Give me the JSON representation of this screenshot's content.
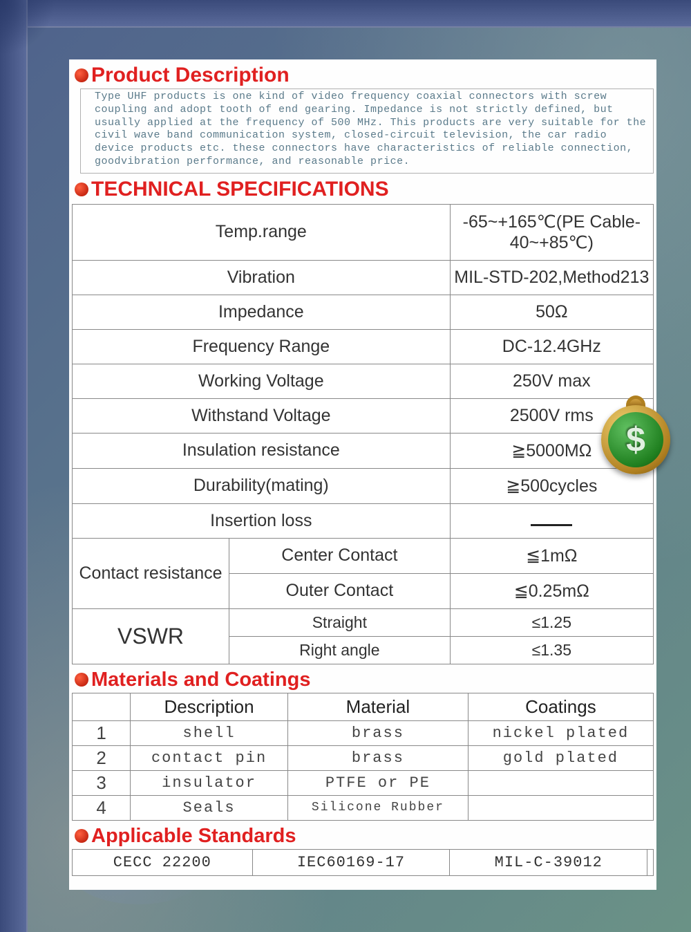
{
  "colors": {
    "heading": "#e02020",
    "border": "#888888",
    "text": "#333333",
    "desc_text": "#5a7a8a",
    "bg_page": "#fefefe"
  },
  "sections": {
    "desc_title": "Product Description",
    "desc_body": "Type UHF products is one kind of video frequency coaxial connectors with screw coupling and adopt tooth of end gearing. Impedance is not strictly defined, but usually applied at the frequency of 500 MHz. This products are very suitable for the civil wave band communication system, closed-circuit television, the car radio device products etc. these connectors have characteristics of reliable connection, goodvibration performance, and reasonable price.",
    "spec_title": "TECHNICAL SPECIFICATIONS",
    "mat_title": "Materials and Coatings",
    "std_title": "Applicable Standards"
  },
  "specs": {
    "rows": [
      {
        "label": "Temp.range",
        "value": "-65~+165℃(PE Cable-40~+85℃)"
      },
      {
        "label": "Vibration",
        "value": "MIL-STD-202,Method213"
      },
      {
        "label": "Impedance",
        "value": "50Ω"
      },
      {
        "label": "Frequency Range",
        "value": "DC-12.4GHz"
      },
      {
        "label": "Working Voltage",
        "value": "250V  max"
      },
      {
        "label": "Withstand Voltage",
        "value": "2500V rms"
      },
      {
        "label": "Insulation resistance",
        "value": "≧5000MΩ"
      },
      {
        "label": "Durability(mating)",
        "value": "≧500cycles"
      },
      {
        "label": "Insertion loss",
        "value": ""
      }
    ],
    "contact_label": "Contact resistance",
    "contact_rows": [
      {
        "sub": "Center Contact",
        "val": "≦1mΩ"
      },
      {
        "sub": "Outer Contact",
        "val": "≦0.25mΩ"
      }
    ],
    "vswr_label": "VSWR",
    "vswr_rows": [
      {
        "sub": "Straight",
        "val": "≤1.25"
      },
      {
        "sub": "Right angle",
        "val": "≤1.35"
      }
    ]
  },
  "materials": {
    "headers": [
      "",
      "Description",
      "Material",
      "Coatings"
    ],
    "rows": [
      {
        "n": "1",
        "desc": "shell",
        "mat": "brass",
        "coat": "nickel plated"
      },
      {
        "n": "2",
        "desc": "contact pin",
        "mat": "brass",
        "coat": "gold plated"
      },
      {
        "n": "3",
        "desc": "insulator",
        "mat": "PTFE or PE",
        "coat": ""
      },
      {
        "n": "4",
        "desc": "Seals",
        "mat": "Silicone Rubber",
        "coat": ""
      }
    ]
  },
  "standards": [
    "CECC 22200",
    "IEC60169-17",
    "MIL-C-39012",
    ""
  ]
}
